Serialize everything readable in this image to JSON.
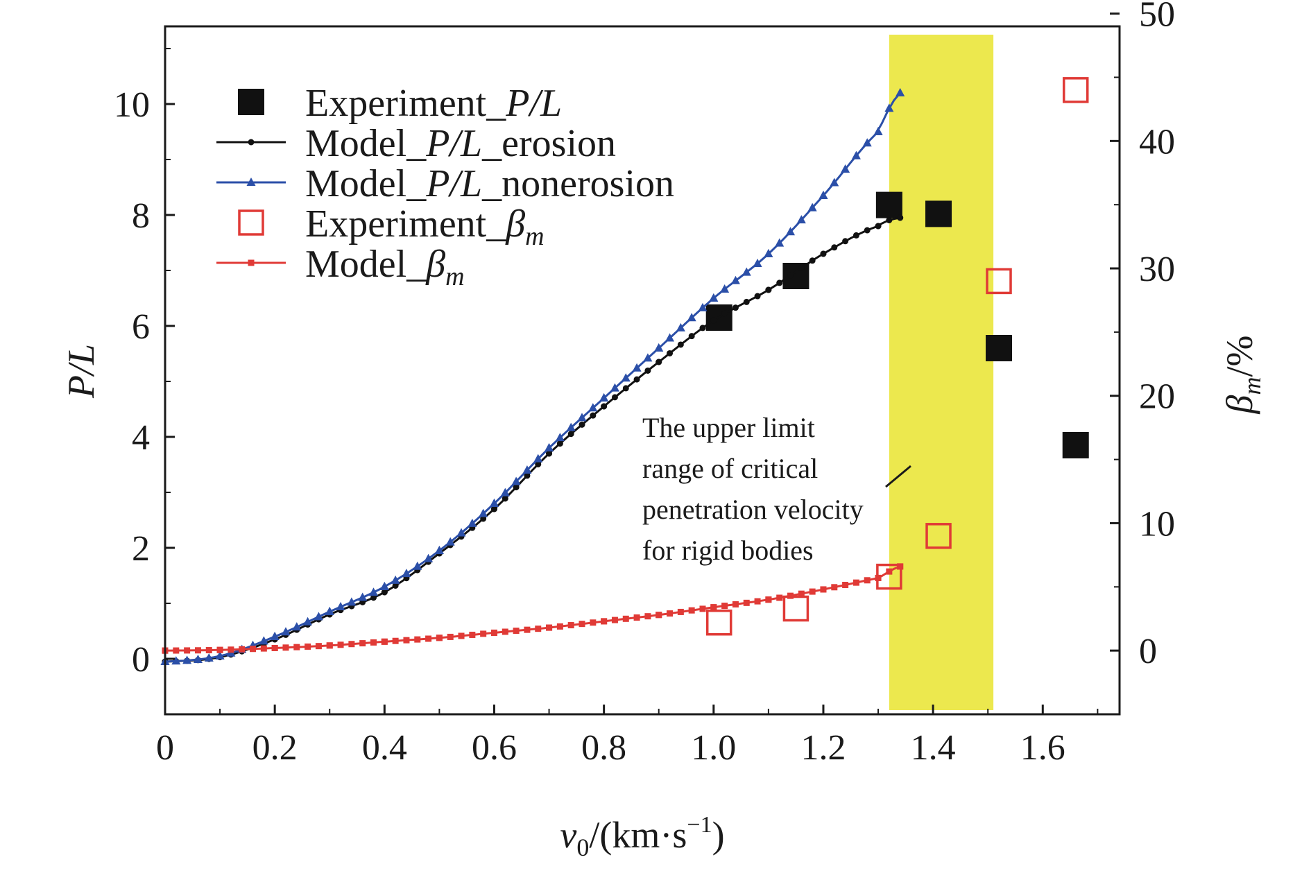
{
  "chart_data": {
    "type": "scatter",
    "title": "",
    "xlabel": {
      "symbol": "v",
      "sub": "0",
      "unit": "/(km·s",
      "sup": "−1",
      "close": ")"
    },
    "ylabel_left": "P/L",
    "ylabel_right": {
      "symbol": "β",
      "sub": "m",
      "unit": "/%"
    },
    "xlim": [
      0,
      1.74
    ],
    "ylim_left": [
      -1,
      11.4
    ],
    "ylim_right": [
      -5,
      49
    ],
    "x_ticks": [
      "0",
      "0.2",
      "0.4",
      "0.6",
      "0.8",
      "1.0",
      "1.2",
      "1.4",
      "1.6"
    ],
    "x_tick_values": [
      0,
      0.2,
      0.4,
      0.6,
      0.8,
      1.0,
      1.2,
      1.4,
      1.6
    ],
    "y_left_ticks": [
      "0",
      "2",
      "4",
      "6",
      "8",
      "10"
    ],
    "y_left_tick_values": [
      0,
      2,
      4,
      6,
      8,
      10
    ],
    "y_right_ticks": [
      "0",
      "10",
      "20",
      "30",
      "40",
      "50"
    ],
    "y_right_tick_values": [
      0,
      10,
      20,
      30,
      40,
      50
    ],
    "grid": false,
    "legend_position": "top-left",
    "shaded_region": {
      "x": [
        1.32,
        1.51
      ],
      "color": "#ece84e"
    },
    "annotation": {
      "lines": [
        "The upper limit",
        "range of critical",
        "penetration velocity",
        "for rigid bodies"
      ],
      "arrow_to": [
        1.35,
        13.5
      ],
      "arrow_from": [
        1.31,
        10.8
      ]
    },
    "series": [
      {
        "name": "Experiment_P/L",
        "legend": {
          "prefix": "Experiment_",
          "italic": "P/L",
          "suffix": ""
        },
        "axis": "left",
        "marker": "filled-square",
        "color": "#111111",
        "x": [
          1.01,
          1.15,
          1.32,
          1.41,
          1.52,
          1.66
        ],
        "y": [
          6.15,
          6.9,
          8.18,
          8.02,
          5.6,
          3.85
        ]
      },
      {
        "name": "Model_P/L_erosion",
        "legend": {
          "prefix": "Model_",
          "italic": "P/L",
          "suffix": "_erosion"
        },
        "axis": "left",
        "marker": "dot-line",
        "color": "#111111",
        "x": [
          0.0,
          0.1,
          0.2,
          0.3,
          0.4,
          0.5,
          0.6,
          0.7,
          0.8,
          0.9,
          1.0,
          1.1,
          1.2,
          1.3,
          1.34
        ],
        "y": [
          -0.05,
          0.03,
          0.35,
          0.8,
          1.2,
          1.9,
          2.7,
          3.7,
          4.55,
          5.35,
          6.1,
          6.65,
          7.3,
          7.8,
          7.95
        ]
      },
      {
        "name": "Model_P/L_nonerosion",
        "legend": {
          "prefix": "Model_",
          "italic": "P/L",
          "suffix": "_nonerosion"
        },
        "axis": "left",
        "marker": "triangle-line",
        "color": "#2b4fa8",
        "x": [
          0.0,
          0.1,
          0.2,
          0.3,
          0.4,
          0.5,
          0.6,
          0.7,
          0.8,
          0.9,
          1.0,
          1.1,
          1.2,
          1.3,
          1.34
        ],
        "y": [
          -0.05,
          0.05,
          0.4,
          0.85,
          1.3,
          1.95,
          2.8,
          3.8,
          4.7,
          5.6,
          6.5,
          7.3,
          8.35,
          9.5,
          10.2
        ]
      },
      {
        "name": "Experiment_βm",
        "legend": {
          "prefix": "Experiment_",
          "italic": "β",
          "sub": "m"
        },
        "axis": "right",
        "marker": "open-square",
        "color": "#e03a36",
        "x": [
          1.01,
          1.15,
          1.32,
          1.41,
          1.52,
          1.66
        ],
        "y": [
          2.2,
          3.3,
          5.8,
          9.0,
          29.0,
          44.0
        ]
      },
      {
        "name": "Model_βm",
        "legend": {
          "prefix": "Model_",
          "italic": "β",
          "sub": "m"
        },
        "axis": "right",
        "marker": "small-square-line",
        "color": "#e03a36",
        "x": [
          0.0,
          0.1,
          0.2,
          0.3,
          0.4,
          0.5,
          0.6,
          0.7,
          0.8,
          0.9,
          1.0,
          1.1,
          1.2,
          1.3,
          1.34
        ],
        "y": [
          0.0,
          0.05,
          0.2,
          0.4,
          0.7,
          1.0,
          1.4,
          1.8,
          2.3,
          2.8,
          3.4,
          4.0,
          4.8,
          5.7,
          6.6
        ]
      }
    ]
  }
}
